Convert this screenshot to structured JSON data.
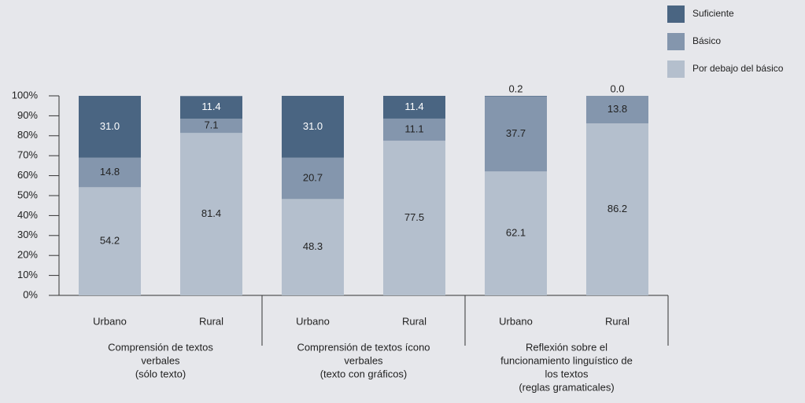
{
  "chart_data": {
    "type": "stacked_bar",
    "categories": [
      "Urbano",
      "Rural",
      "Urbano",
      "Rural",
      "Urbano",
      "Rural"
    ],
    "groups": [
      [
        "Comprensión de textos",
        "verbales",
        "(sólo texto)"
      ],
      [
        "Comprensión de textos ícono",
        "verbales",
        "(texto con gráficos)"
      ],
      [
        "Reflexión sobre el",
        "funcionamiento linguístico de",
        "los textos",
        "(reglas gramaticales)"
      ]
    ],
    "series": [
      {
        "name": "Por debajo del básico",
        "color": "#b4bfcd",
        "values": [
          54.2,
          81.4,
          48.3,
          77.5,
          62.1,
          86.2
        ],
        "value_labels": [
          "54.2",
          "81.4",
          "48.3",
          "77.5",
          "62.1",
          "86.2"
        ]
      },
      {
        "name": "Básico",
        "color": "#8496ad",
        "values": [
          14.8,
          7.1,
          20.7,
          11.1,
          37.7,
          13.8
        ],
        "value_labels": [
          "14.8",
          "7.1",
          "20.7",
          "11.1",
          "37.7",
          "13.8"
        ]
      },
      {
        "name": "Suficiente",
        "color": "#4a6582",
        "values": [
          31.0,
          11.4,
          31.0,
          11.4,
          0.2,
          0.0
        ],
        "value_labels": [
          "31.0",
          "11.4",
          "31.0",
          "11.4",
          "0.2",
          "0.0"
        ]
      }
    ],
    "ylim": [
      0,
      100
    ],
    "yticks": [
      {
        "value": 0,
        "label": "0%"
      },
      {
        "value": 10,
        "label": "10%"
      },
      {
        "value": 20,
        "label": "20%"
      },
      {
        "value": 30,
        "label": "30%"
      },
      {
        "value": 40,
        "label": "40%"
      },
      {
        "value": 50,
        "label": "50%"
      },
      {
        "value": 60,
        "label": "60%"
      },
      {
        "value": 70,
        "label": "70%"
      },
      {
        "value": 80,
        "label": "80%"
      },
      {
        "value": 90,
        "label": "90%"
      },
      {
        "value": 100,
        "label": "100%"
      }
    ],
    "legend": "top-right"
  }
}
